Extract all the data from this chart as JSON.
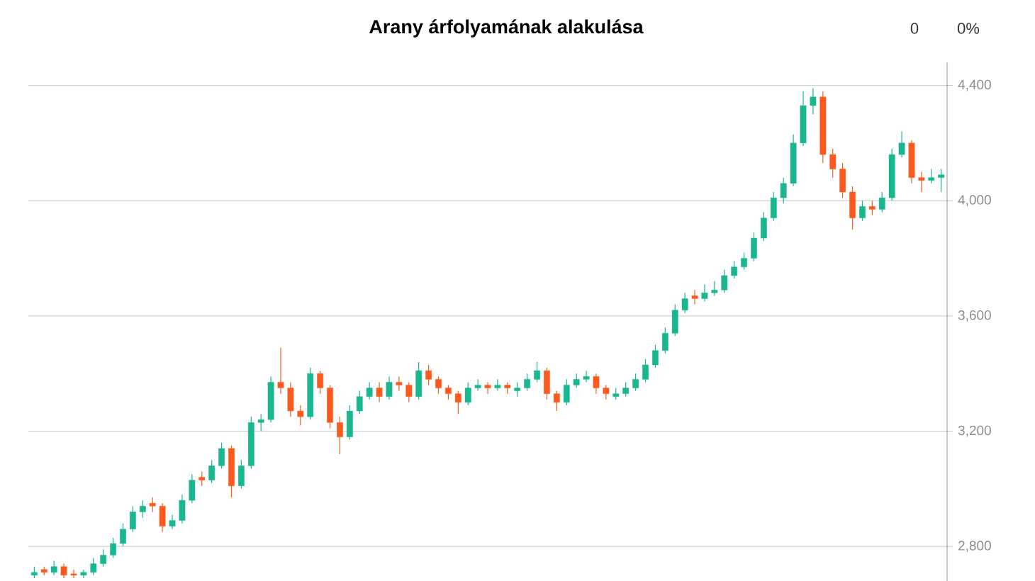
{
  "chart_data": {
    "type": "candlestick",
    "title": "Arany árfolyamának alakulása",
    "annotations": [
      "0",
      "0%"
    ],
    "categories": [
      null,
      null,
      null,
      null,
      null,
      null,
      null,
      null,
      null,
      null,
      null,
      null,
      null,
      null,
      null,
      null,
      null,
      null,
      null,
      null,
      null,
      null,
      null,
      null,
      null,
      null,
      null,
      null,
      null,
      null,
      null,
      null,
      null,
      null,
      null,
      null,
      null,
      null,
      null,
      null,
      null,
      null,
      null,
      null,
      null,
      null,
      null,
      null,
      null,
      null,
      null,
      null,
      null,
      null,
      null,
      null,
      null,
      null,
      null,
      null,
      null,
      null,
      null,
      null,
      null,
      null,
      null,
      null,
      null,
      null,
      null,
      null,
      null,
      null,
      null,
      null,
      null,
      null,
      null,
      null,
      null,
      null,
      null,
      null,
      null,
      null,
      null,
      null,
      null,
      null,
      null,
      null,
      null
    ],
    "ohlc": [
      [
        2700,
        2730,
        2690,
        2710
      ],
      [
        2720,
        2730,
        2700,
        2710
      ],
      [
        2710,
        2750,
        2700,
        2730
      ],
      [
        2730,
        2740,
        2690,
        2700
      ],
      [
        2705,
        2720,
        2690,
        2700
      ],
      [
        2700,
        2720,
        2690,
        2710
      ],
      [
        2710,
        2760,
        2700,
        2740
      ],
      [
        2740,
        2790,
        2730,
        2770
      ],
      [
        2770,
        2830,
        2760,
        2810
      ],
      [
        2810,
        2880,
        2800,
        2860
      ],
      [
        2860,
        2940,
        2850,
        2920
      ],
      [
        2920,
        2960,
        2900,
        2940
      ],
      [
        2950,
        2970,
        2920,
        2940
      ],
      [
        2940,
        2950,
        2850,
        2870
      ],
      [
        2870,
        2910,
        2860,
        2890
      ],
      [
        2890,
        2980,
        2880,
        2960
      ],
      [
        2960,
        3050,
        2950,
        3030
      ],
      [
        3040,
        3060,
        3010,
        3030
      ],
      [
        3030,
        3100,
        3020,
        3080
      ],
      [
        3080,
        3160,
        3070,
        3140
      ],
      [
        3140,
        3150,
        2970,
        3010
      ],
      [
        3010,
        3100,
        3000,
        3080
      ],
      [
        3080,
        3250,
        3070,
        3230
      ],
      [
        3230,
        3260,
        3200,
        3240
      ],
      [
        3240,
        3390,
        3230,
        3370
      ],
      [
        3370,
        3490,
        3330,
        3350
      ],
      [
        3350,
        3370,
        3250,
        3270
      ],
      [
        3270,
        3290,
        3220,
        3250
      ],
      [
        3250,
        3420,
        3240,
        3400
      ],
      [
        3400,
        3410,
        3330,
        3350
      ],
      [
        3350,
        3360,
        3210,
        3230
      ],
      [
        3230,
        3250,
        3120,
        3180
      ],
      [
        3180,
        3290,
        3170,
        3270
      ],
      [
        3270,
        3340,
        3260,
        3320
      ],
      [
        3320,
        3370,
        3310,
        3350
      ],
      [
        3350,
        3370,
        3300,
        3320
      ],
      [
        3320,
        3390,
        3310,
        3370
      ],
      [
        3370,
        3390,
        3340,
        3360
      ],
      [
        3360,
        3370,
        3300,
        3320
      ],
      [
        3320,
        3440,
        3310,
        3410
      ],
      [
        3410,
        3430,
        3360,
        3380
      ],
      [
        3380,
        3390,
        3330,
        3350
      ],
      [
        3350,
        3360,
        3310,
        3330
      ],
      [
        3330,
        3340,
        3260,
        3300
      ],
      [
        3300,
        3370,
        3290,
        3350
      ],
      [
        3350,
        3380,
        3340,
        3360
      ],
      [
        3360,
        3370,
        3330,
        3350
      ],
      [
        3350,
        3380,
        3340,
        3360
      ],
      [
        3360,
        3370,
        3330,
        3350
      ],
      [
        3340,
        3370,
        3320,
        3350
      ],
      [
        3350,
        3400,
        3340,
        3380
      ],
      [
        3380,
        3440,
        3370,
        3410
      ],
      [
        3410,
        3420,
        3310,
        3330
      ],
      [
        3330,
        3340,
        3270,
        3300
      ],
      [
        3300,
        3380,
        3290,
        3360
      ],
      [
        3360,
        3400,
        3350,
        3380
      ],
      [
        3380,
        3410,
        3370,
        3390
      ],
      [
        3390,
        3400,
        3330,
        3350
      ],
      [
        3350,
        3360,
        3310,
        3330
      ],
      [
        3320,
        3350,
        3310,
        3330
      ],
      [
        3330,
        3370,
        3320,
        3350
      ],
      [
        3350,
        3400,
        3340,
        3380
      ],
      [
        3380,
        3450,
        3370,
        3430
      ],
      [
        3430,
        3500,
        3420,
        3480
      ],
      [
        3480,
        3560,
        3470,
        3540
      ],
      [
        3540,
        3640,
        3530,
        3620
      ],
      [
        3620,
        3680,
        3610,
        3660
      ],
      [
        3670,
        3690,
        3640,
        3660
      ],
      [
        3660,
        3710,
        3650,
        3680
      ],
      [
        3680,
        3720,
        3670,
        3690
      ],
      [
        3690,
        3760,
        3680,
        3740
      ],
      [
        3740,
        3790,
        3730,
        3770
      ],
      [
        3770,
        3820,
        3760,
        3800
      ],
      [
        3800,
        3890,
        3790,
        3870
      ],
      [
        3870,
        3960,
        3860,
        3940
      ],
      [
        3940,
        4030,
        3930,
        4010
      ],
      [
        4010,
        4080,
        3990,
        4060
      ],
      [
        4060,
        4230,
        4050,
        4200
      ],
      [
        4200,
        4380,
        4190,
        4330
      ],
      [
        4330,
        4390,
        4300,
        4360
      ],
      [
        4360,
        4380,
        4130,
        4160
      ],
      [
        4160,
        4180,
        4080,
        4110
      ],
      [
        4110,
        4130,
        4010,
        4030
      ],
      [
        4030,
        4050,
        3900,
        3940
      ],
      [
        3940,
        4000,
        3930,
        3980
      ],
      [
        3980,
        4000,
        3950,
        3970
      ],
      [
        3970,
        4030,
        3960,
        4010
      ],
      [
        4010,
        4180,
        4000,
        4160
      ],
      [
        4160,
        4240,
        4150,
        4200
      ],
      [
        4200,
        4210,
        4060,
        4080
      ],
      [
        4080,
        4100,
        4030,
        4070
      ],
      [
        4070,
        4110,
        4060,
        4080
      ],
      [
        4080,
        4110,
        4030,
        4090
      ]
    ],
    "colors": [
      "#19b690",
      "#fa5a1e",
      "#19b690",
      "#fa5a1e",
      "#fa5a1e",
      "#19b690",
      "#19b690",
      "#19b690",
      "#19b690",
      "#19b690",
      "#19b690",
      "#19b690",
      "#fa5a1e",
      "#fa5a1e",
      "#19b690",
      "#19b690",
      "#19b690",
      "#fa5a1e",
      "#19b690",
      "#19b690",
      "#fa5a1e",
      "#19b690",
      "#19b690",
      "#19b690",
      "#19b690",
      "#fa5a1e",
      "#fa5a1e",
      "#fa5a1e",
      "#19b690",
      "#fa5a1e",
      "#fa5a1e",
      "#fa5a1e",
      "#19b690",
      "#19b690",
      "#19b690",
      "#fa5a1e",
      "#19b690",
      "#fa5a1e",
      "#fa5a1e",
      "#19b690",
      "#fa5a1e",
      "#fa5a1e",
      "#fa5a1e",
      "#fa5a1e",
      "#19b690",
      "#19b690",
      "#fa5a1e",
      "#19b690",
      "#fa5a1e",
      "#19b690",
      "#19b690",
      "#19b690",
      "#fa5a1e",
      "#fa5a1e",
      "#19b690",
      "#19b690",
      "#19b690",
      "#fa5a1e",
      "#fa5a1e",
      "#19b690",
      "#19b690",
      "#19b690",
      "#19b690",
      "#19b690",
      "#19b690",
      "#19b690",
      "#19b690",
      "#fa5a1e",
      "#19b690",
      "#19b690",
      "#19b690",
      "#19b690",
      "#19b690",
      "#19b690",
      "#19b690",
      "#19b690",
      "#19b690",
      "#19b690",
      "#19b690",
      "#19b690",
      "#fa5a1e",
      "#fa5a1e",
      "#fa5a1e",
      "#fa5a1e",
      "#19b690",
      "#fa5a1e",
      "#19b690",
      "#19b690",
      "#19b690",
      "#fa5a1e",
      "#fa5a1e",
      "#19b690",
      "#19b690"
    ],
    "ylim": [
      2680,
      4480
    ],
    "yticks": [
      {
        "value": 2800,
        "label": "2,800"
      },
      {
        "value": 3200,
        "label": "3,200"
      },
      {
        "value": 3600,
        "label": "3,600"
      },
      {
        "value": 4000,
        "label": "4,000"
      },
      {
        "value": 4400,
        "label": "4,400"
      }
    ],
    "grid": "y"
  }
}
